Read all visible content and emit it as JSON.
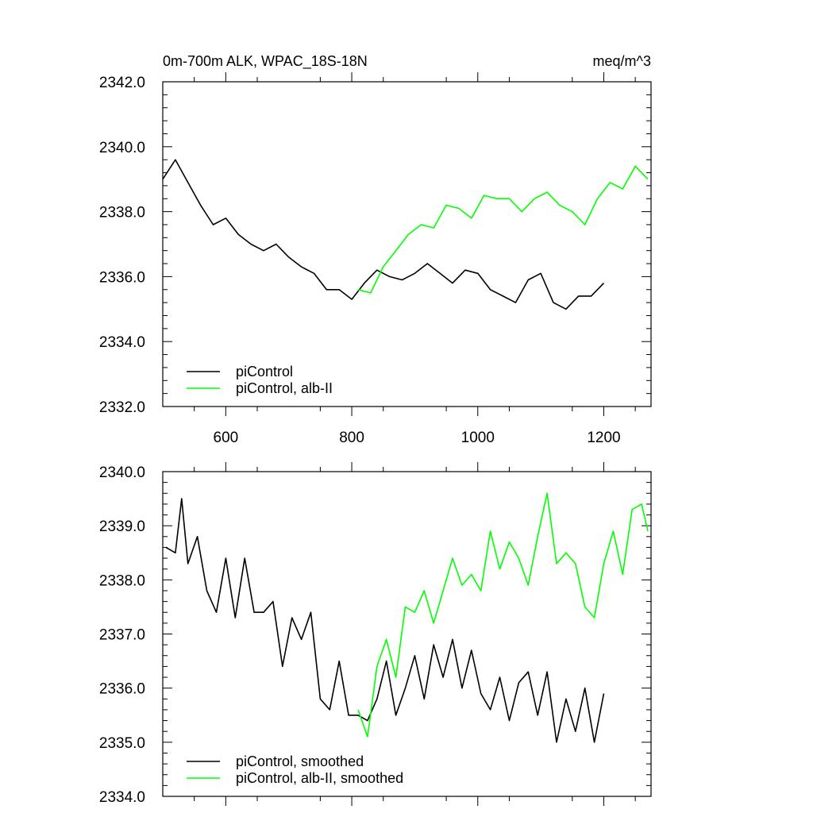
{
  "chart_data": [
    {
      "type": "line",
      "title": "0m-700m ALK, WPAC_18S-18N",
      "units": "meq/m^3",
      "xlim": [
        500,
        1275
      ],
      "ylim": [
        2332.0,
        2342.0
      ],
      "x_ticks": [
        600,
        800,
        1000,
        1200
      ],
      "x_tick_labels": [
        "600",
        "800",
        "1000",
        "1200"
      ],
      "y_ticks": [
        2332.0,
        2334.0,
        2336.0,
        2338.0,
        2340.0,
        2342.0
      ],
      "y_tick_labels": [
        "2332.0",
        "2334.0",
        "2336.0",
        "2338.0",
        "2340.0",
        "2342.0"
      ],
      "grid": false,
      "legend_position": "bottom-left",
      "series": [
        {
          "name": "piControl",
          "color": "#000000",
          "x": [
            500,
            520,
            540,
            560,
            580,
            600,
            620,
            640,
            660,
            680,
            700,
            720,
            740,
            760,
            780,
            800,
            820,
            840,
            860,
            880,
            900,
            920,
            940,
            960,
            980,
            1000,
            1020,
            1040,
            1060,
            1080,
            1100,
            1120,
            1140,
            1160,
            1180,
            1200
          ],
          "values": [
            2339.0,
            2339.6,
            2338.9,
            2338.2,
            2337.6,
            2337.8,
            2337.3,
            2337.0,
            2336.8,
            2337.0,
            2336.6,
            2336.3,
            2336.1,
            2335.6,
            2335.6,
            2335.3,
            2335.8,
            2336.2,
            2336.0,
            2335.9,
            2336.1,
            2336.4,
            2336.1,
            2335.8,
            2336.2,
            2336.1,
            2335.6,
            2335.4,
            2335.2,
            2335.9,
            2336.1,
            2335.2,
            2335.0,
            2335.4,
            2335.4,
            2335.8
          ]
        },
        {
          "name": "piControl, alb-II",
          "color": "#00ff00",
          "x": [
            810,
            830,
            850,
            870,
            890,
            910,
            930,
            950,
            970,
            990,
            1010,
            1030,
            1050,
            1070,
            1090,
            1110,
            1130,
            1150,
            1170,
            1190,
            1210,
            1230,
            1250,
            1270
          ],
          "values": [
            2335.6,
            2335.5,
            2336.3,
            2336.8,
            2337.3,
            2337.6,
            2337.5,
            2338.2,
            2338.1,
            2337.8,
            2338.5,
            2338.4,
            2338.4,
            2338.0,
            2338.4,
            2338.6,
            2338.2,
            2338.0,
            2337.6,
            2338.4,
            2338.9,
            2338.7,
            2339.4,
            2339.0
          ]
        }
      ]
    },
    {
      "type": "line",
      "xlim": [
        500,
        1275
      ],
      "ylim": [
        2334.0,
        2340.0
      ],
      "x_ticks": [
        600,
        800,
        1000,
        1200
      ],
      "x_tick_labels": [],
      "y_ticks": [
        2334.0,
        2335.0,
        2336.0,
        2337.0,
        2338.0,
        2339.0,
        2340.0
      ],
      "y_tick_labels": [
        "2334.0",
        "2335.0",
        "2336.0",
        "2337.0",
        "2338.0",
        "2339.0",
        "2340.0"
      ],
      "grid": false,
      "legend_position": "bottom-left",
      "series": [
        {
          "name": "piControl, smoothed",
          "color": "#000000",
          "x": [
            505,
            520,
            530,
            540,
            555,
            570,
            585,
            600,
            615,
            630,
            645,
            660,
            675,
            690,
            705,
            720,
            735,
            750,
            765,
            780,
            795,
            810,
            825,
            840,
            855,
            870,
            885,
            900,
            915,
            930,
            945,
            960,
            975,
            990,
            1005,
            1020,
            1035,
            1050,
            1065,
            1080,
            1095,
            1110,
            1125,
            1140,
            1155,
            1170,
            1185,
            1200
          ],
          "values": [
            2338.6,
            2338.5,
            2339.5,
            2338.3,
            2338.8,
            2337.8,
            2337.4,
            2338.4,
            2337.3,
            2338.4,
            2337.4,
            2337.4,
            2337.6,
            2336.4,
            2337.3,
            2336.9,
            2337.4,
            2335.8,
            2335.6,
            2336.5,
            2335.5,
            2335.5,
            2335.4,
            2335.8,
            2336.5,
            2335.5,
            2336.0,
            2336.6,
            2335.8,
            2336.8,
            2336.2,
            2336.9,
            2336.0,
            2336.7,
            2335.9,
            2335.6,
            2336.2,
            2335.4,
            2336.1,
            2336.3,
            2335.5,
            2336.3,
            2335.0,
            2335.8,
            2335.2,
            2336.0,
            2335.0,
            2335.9
          ]
        },
        {
          "name": "piControl, alb-II, smoothed",
          "color": "#00ff00",
          "x": [
            810,
            825,
            840,
            855,
            870,
            885,
            900,
            915,
            930,
            945,
            960,
            975,
            990,
            1005,
            1020,
            1035,
            1050,
            1065,
            1080,
            1095,
            1110,
            1125,
            1140,
            1155,
            1170,
            1185,
            1200,
            1215,
            1230,
            1245,
            1260,
            1270
          ],
          "values": [
            2335.6,
            2335.1,
            2336.4,
            2336.9,
            2336.2,
            2337.5,
            2337.4,
            2337.8,
            2337.2,
            2337.8,
            2338.4,
            2337.9,
            2338.1,
            2337.8,
            2338.9,
            2338.2,
            2338.7,
            2338.4,
            2337.9,
            2338.8,
            2339.6,
            2338.3,
            2338.5,
            2338.3,
            2337.5,
            2337.3,
            2338.3,
            2338.9,
            2338.1,
            2339.3,
            2339.4,
            2338.9
          ]
        }
      ]
    }
  ]
}
